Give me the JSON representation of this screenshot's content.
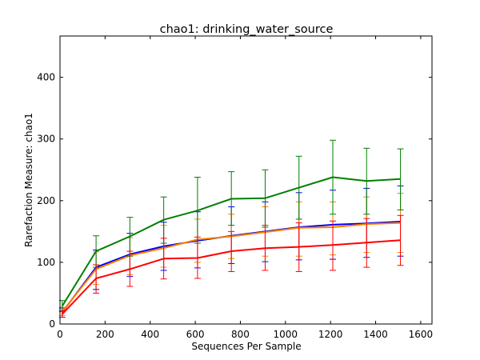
{
  "chart_data": {
    "type": "line",
    "title": "chao1: drinking_water_source",
    "xlabel": "Sequences Per Sample",
    "ylabel": "Rarefaction Measure: chao1",
    "xlim": [
      0,
      1650
    ],
    "ylim": [
      0,
      467
    ],
    "xticks": [
      0,
      200,
      400,
      600,
      800,
      1000,
      1200,
      1400,
      1600
    ],
    "yticks": [
      0,
      100,
      200,
      300,
      400
    ],
    "grid": false,
    "legend": "none",
    "x": [
      10,
      160,
      310,
      460,
      610,
      760,
      910,
      1060,
      1210,
      1360,
      1510
    ],
    "series": [
      {
        "color": "#0000ff",
        "values": [
          19,
          92,
          113,
          126,
          135,
          143,
          150,
          157,
          161,
          163,
          166
        ],
        "err_low": [
          11,
          56,
          77,
          87,
          91,
          98,
          101,
          104,
          105,
          108,
          110
        ],
        "err_high": [
          26,
          120,
          147,
          165,
          182,
          190,
          198,
          213,
          217,
          220,
          224
        ]
      },
      {
        "color": "#ff8000",
        "values": [
          20,
          89,
          111,
          123,
          137,
          142,
          149,
          156,
          157,
          162,
          164
        ],
        "err_low": [
          14,
          64,
          80,
          92,
          100,
          106,
          110,
          110,
          112,
          116,
          116
        ],
        "err_high": [
          27,
          117,
          140,
          160,
          170,
          178,
          190,
          198,
          198,
          206,
          212
        ]
      },
      {
        "color": "#008000",
        "values": [
          29,
          118,
          142,
          169,
          184,
          203,
          204,
          221,
          238,
          232,
          235
        ],
        "err_low": [
          20,
          92,
          110,
          131,
          131,
          160,
          157,
          170,
          178,
          178,
          185
        ],
        "err_high": [
          38,
          143,
          173,
          206,
          238,
          247,
          250,
          272,
          298,
          285,
          284
        ]
      },
      {
        "color": "#ff0000",
        "values": [
          16,
          74,
          89,
          106,
          107,
          118,
          123,
          125,
          128,
          132,
          136
        ],
        "err_low": [
          11,
          50,
          61,
          73,
          74,
          85,
          87,
          85,
          87,
          92,
          95
        ],
        "err_high": [
          22,
          96,
          118,
          139,
          141,
          150,
          160,
          164,
          167,
          171,
          176
        ]
      }
    ]
  }
}
